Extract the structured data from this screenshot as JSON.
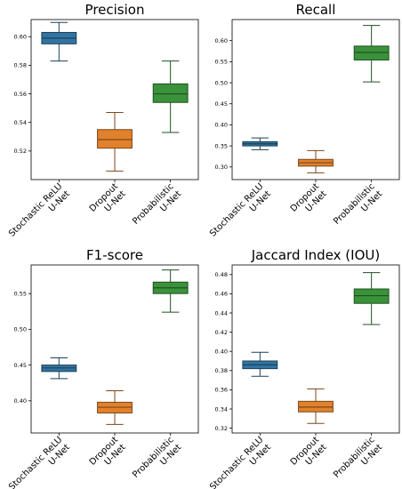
{
  "chart_data": [
    {
      "type": "box",
      "title": "Precision",
      "categories": [
        "Stochastic ReLU\nU-Net",
        "Dropout\nU-Net",
        "Probabilistic\nU-Net"
      ],
      "ylim": [
        0.5,
        0.612
      ],
      "yticks": [
        0.52,
        0.54,
        0.56,
        0.58,
        0.6
      ],
      "tick_decimals": 2,
      "grid": false,
      "series": [
        {
          "whisker_low": 0.583,
          "q1": 0.595,
          "median": 0.599,
          "q3": 0.603,
          "whisker_high": 0.61,
          "color": "#3274a1"
        },
        {
          "whisker_low": 0.506,
          "q1": 0.522,
          "median": 0.528,
          "q3": 0.535,
          "whisker_high": 0.547,
          "color": "#e1812c"
        },
        {
          "whisker_low": 0.533,
          "q1": 0.554,
          "median": 0.56,
          "q3": 0.567,
          "whisker_high": 0.583,
          "color": "#3a923a"
        }
      ]
    },
    {
      "type": "box",
      "title": "Recall",
      "categories": [
        "Stochastic ReLU\nU-Net",
        "Dropout\nU-Net",
        "Probabilistic\nU-Net"
      ],
      "ylim": [
        0.27,
        0.65
      ],
      "yticks": [
        0.3,
        0.35,
        0.4,
        0.45,
        0.5,
        0.55,
        0.6
      ],
      "tick_decimals": 2,
      "grid": false,
      "series": [
        {
          "whisker_low": 0.341,
          "q1": 0.35,
          "median": 0.355,
          "q3": 0.36,
          "whisker_high": 0.369,
          "color": "#3274a1"
        },
        {
          "whisker_low": 0.286,
          "q1": 0.302,
          "median": 0.31,
          "q3": 0.318,
          "whisker_high": 0.339,
          "color": "#e1812c"
        },
        {
          "whisker_low": 0.502,
          "q1": 0.554,
          "median": 0.572,
          "q3": 0.587,
          "whisker_high": 0.636,
          "color": "#3a923a"
        }
      ]
    },
    {
      "type": "box",
      "title": "F1-score",
      "categories": [
        "Stochastic ReLU\nU-Net",
        "Dropout\nU-Net",
        "Probabilistic\nU-Net"
      ],
      "ylim": [
        0.355,
        0.59
      ],
      "yticks": [
        0.4,
        0.45,
        0.5,
        0.55
      ],
      "tick_decimals": 2,
      "grid": false,
      "series": [
        {
          "whisker_low": 0.431,
          "q1": 0.441,
          "median": 0.446,
          "q3": 0.45,
          "whisker_high": 0.46,
          "color": "#3274a1"
        },
        {
          "whisker_low": 0.367,
          "q1": 0.383,
          "median": 0.391,
          "q3": 0.398,
          "whisker_high": 0.414,
          "color": "#e1812c"
        },
        {
          "whisker_low": 0.524,
          "q1": 0.55,
          "median": 0.558,
          "q3": 0.566,
          "whisker_high": 0.583,
          "color": "#3a923a"
        }
      ]
    },
    {
      "type": "box",
      "title": "Jaccard Index (IOU)",
      "categories": [
        "Stochastic ReLU\nU-Net",
        "Dropout\nU-Net",
        "Probabilistic\nU-Net"
      ],
      "ylim": [
        0.315,
        0.49
      ],
      "yticks": [
        0.32,
        0.34,
        0.36,
        0.38,
        0.4,
        0.42,
        0.44,
        0.46,
        0.48
      ],
      "tick_decimals": 2,
      "grid": false,
      "series": [
        {
          "whisker_low": 0.374,
          "q1": 0.382,
          "median": 0.386,
          "q3": 0.39,
          "whisker_high": 0.399,
          "color": "#3274a1"
        },
        {
          "whisker_low": 0.325,
          "q1": 0.337,
          "median": 0.342,
          "q3": 0.348,
          "whisker_high": 0.361,
          "color": "#e1812c"
        },
        {
          "whisker_low": 0.428,
          "q1": 0.45,
          "median": 0.458,
          "q3": 0.465,
          "whisker_high": 0.482,
          "color": "#3a923a"
        }
      ]
    }
  ]
}
